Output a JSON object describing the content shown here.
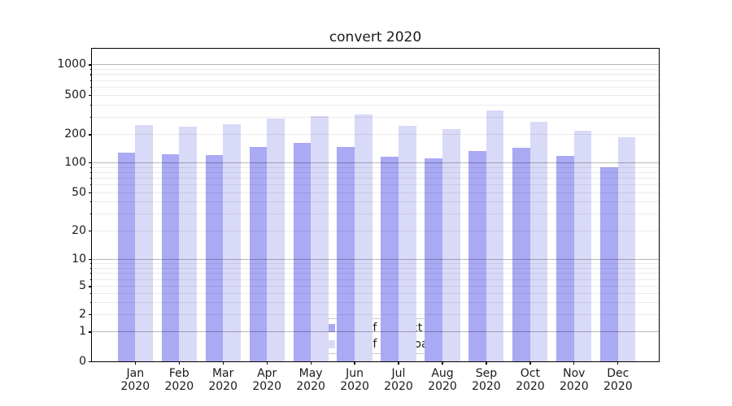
{
  "page": {
    "background": "#ffffff"
  },
  "chart_data": {
    "type": "bar",
    "title": "convert 2020",
    "categories": [
      "Jan 2020",
      "Feb 2020",
      "Mar 2020",
      "Apr 2020",
      "May 2020",
      "Jun 2020",
      "Jul 2020",
      "Aug 2020",
      "Sep 2020",
      "Oct 2020",
      "Nov 2020",
      "Dec 2020"
    ],
    "x_tick_months": [
      "Jan",
      "Feb",
      "Mar",
      "Apr",
      "May",
      "Jun",
      "Jul",
      "Aug",
      "Sep",
      "Oct",
      "Nov",
      "Dec"
    ],
    "x_tick_year": "2020",
    "series": [
      {
        "name": "Nb of distinct IPs",
        "color": "#a9a9f4",
        "values": [
          126,
          123,
          121,
          146,
          163,
          147,
          114,
          110,
          132,
          142,
          117,
          89
        ]
      },
      {
        "name": "Nb of downloads",
        "color": "#d9d9f8",
        "values": [
          248,
          240,
          254,
          288,
          303,
          318,
          243,
          225,
          350,
          266,
          219,
          185
        ]
      }
    ],
    "yscale": "symlog",
    "yticks": [
      1000,
      500,
      200,
      100,
      50,
      20,
      10,
      5,
      2,
      1,
      0
    ],
    "ylim": [
      0,
      1500
    ],
    "grid": true,
    "legend_position": "lower center"
  },
  "colors": {
    "bar_ips": "#a9a9f4",
    "bar_downloads": "#d9d9f8",
    "major_grid": "rgba(0,0,0,0.28)",
    "minor_grid": "rgba(0,0,0,0.08)",
    "spine": "#000000",
    "text": "#1a1a1a"
  }
}
